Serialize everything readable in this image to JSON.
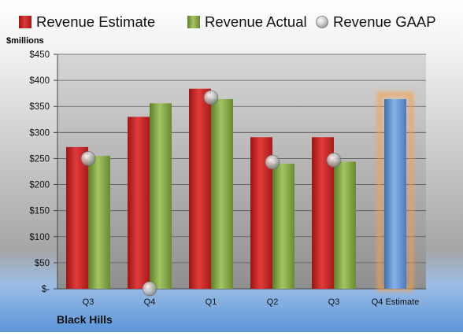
{
  "chart_data": {
    "type": "bar",
    "company": "Black Hills",
    "unit_label": "$millions",
    "categories": [
      "Q3",
      "Q4",
      "Q1",
      "Q2",
      "Q3",
      "Q4 Estimate"
    ],
    "y_ticks": [
      "$-",
      "$50",
      "$100",
      "$150",
      "$200",
      "$250",
      "$300",
      "$350",
      "$400",
      "$450"
    ],
    "ylim": [
      0,
      450
    ],
    "grid": true,
    "legend_position": "top",
    "series": [
      {
        "name": "Revenue Estimate",
        "type": "bar",
        "color": "#d92b2b",
        "values": [
          272,
          330,
          384,
          291,
          291,
          null
        ]
      },
      {
        "name": "Revenue Actual",
        "type": "bar",
        "color": "#8cb04a",
        "values": [
          255,
          356,
          364,
          240,
          244,
          364
        ]
      },
      {
        "name": "Revenue GAAP",
        "type": "marker",
        "color": "#c8c8c8",
        "values": [
          250,
          0,
          367,
          243,
          247,
          null
        ]
      }
    ],
    "highlight": {
      "category_index": 5,
      "bar_color": "#6f9fd8",
      "glow_color": "#f5a04a"
    }
  }
}
